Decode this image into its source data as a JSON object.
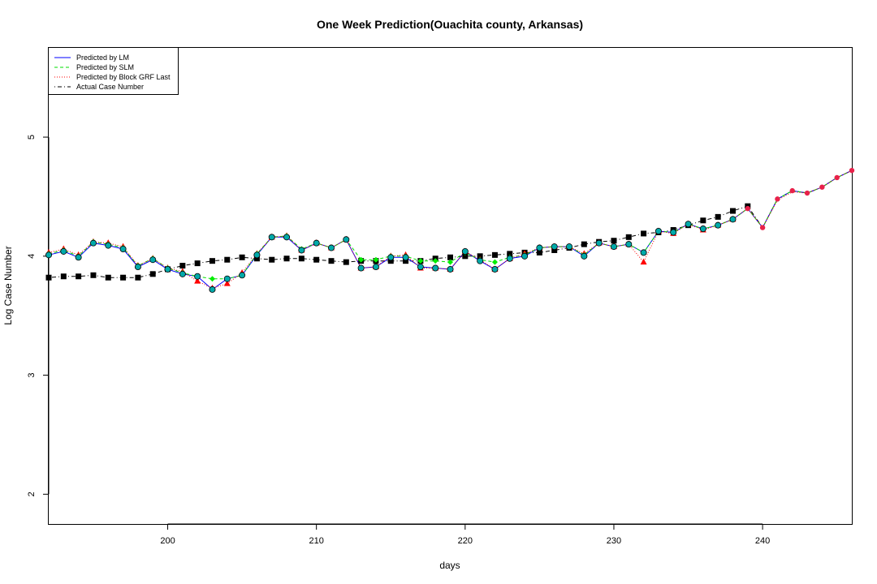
{
  "chart_data": {
    "type": "line",
    "title": "One Week Prediction(Ouachita county, Arkansas)",
    "xlabel": "days",
    "ylabel": "Log Case Number",
    "xlim": [
      192,
      246
    ],
    "ylim": [
      1.75,
      5.75
    ],
    "xticks": [
      200,
      210,
      220,
      230,
      240
    ],
    "yticks": [
      2,
      3,
      4,
      5
    ],
    "legend_position": "top-left",
    "grid": false,
    "legend": [
      {
        "label": "Predicted by LM",
        "color": "#0000ff",
        "dash": "solid"
      },
      {
        "label": "Predicted by SLM",
        "color": "#00dd00",
        "dash": "dashed"
      },
      {
        "label": "Predicted by Block GRF Last",
        "color": "#ff0000",
        "dash": "dotted"
      },
      {
        "label": "Actual Case Number",
        "color": "#000000",
        "dash": "dotdash"
      }
    ],
    "x": [
      192,
      193,
      194,
      195,
      196,
      197,
      198,
      199,
      200,
      201,
      202,
      203,
      204,
      205,
      206,
      207,
      208,
      209,
      210,
      211,
      212,
      213,
      214,
      215,
      216,
      217,
      218,
      219,
      220,
      221,
      222,
      223,
      224,
      225,
      226,
      227,
      228,
      229,
      230,
      231,
      232,
      233,
      234,
      235,
      236,
      237,
      238,
      239,
      240,
      241,
      242,
      243,
      244,
      245,
      246
    ],
    "series": [
      {
        "name": "Predicted by LM",
        "color": "#0000ff",
        "values": [
          4.01,
          4.04,
          3.99,
          4.11,
          4.09,
          4.06,
          3.91,
          3.97,
          3.89,
          3.85,
          3.83,
          3.72,
          3.81,
          3.84,
          4.01,
          4.16,
          4.16,
          4.05,
          4.11,
          4.07,
          4.14,
          3.9,
          3.91,
          3.99,
          3.99,
          3.91,
          3.9,
          3.89,
          4.04,
          3.96,
          3.89,
          3.98,
          4.0,
          4.07,
          4.08,
          4.08,
          4.0,
          4.11,
          4.08,
          4.1,
          4.03,
          4.21,
          4.2,
          4.27,
          4.23,
          4.26,
          4.31,
          4.4,
          4.24,
          4.48,
          4.55,
          4.53,
          4.58,
          4.66,
          4.72
        ]
      },
      {
        "name": "Predicted by SLM",
        "color": "#00dd00",
        "values": [
          4.02,
          4.05,
          4.0,
          4.12,
          4.1,
          4.07,
          3.92,
          3.98,
          3.9,
          3.86,
          3.83,
          3.81,
          3.81,
          3.84,
          4.02,
          4.16,
          4.17,
          4.06,
          4.11,
          4.07,
          4.14,
          3.97,
          3.97,
          4.0,
          4.0,
          3.96,
          3.96,
          3.95,
          4.03,
          3.97,
          3.95,
          3.99,
          4.01,
          4.07,
          4.08,
          4.08,
          4.01,
          4.11,
          4.08,
          4.1,
          4.03,
          4.21,
          4.2,
          4.27,
          4.23,
          4.26,
          4.31,
          4.4,
          4.24,
          4.48,
          4.55,
          4.53,
          4.58,
          4.66,
          4.72
        ]
      },
      {
        "name": "Predicted by Block GRF Last",
        "color": "#ff0000",
        "values": [
          4.03,
          4.06,
          4.01,
          4.12,
          4.11,
          4.08,
          3.92,
          3.98,
          3.9,
          3.87,
          3.79,
          3.73,
          3.77,
          3.86,
          4.02,
          4.16,
          4.17,
          4.05,
          4.11,
          4.07,
          4.14,
          3.9,
          3.91,
          4.0,
          4.01,
          3.9,
          3.9,
          3.89,
          4.04,
          3.97,
          3.89,
          3.98,
          4.02,
          4.07,
          4.08,
          4.08,
          4.02,
          4.11,
          4.08,
          4.1,
          3.95,
          4.21,
          4.19,
          4.27,
          4.22,
          4.26,
          4.31,
          4.4,
          4.24,
          4.47,
          4.54,
          4.53,
          4.58,
          4.66,
          4.72
        ]
      },
      {
        "name": "Actual Case Number",
        "color": "#000000",
        "values": [
          3.82,
          3.83,
          3.83,
          3.84,
          3.82,
          3.82,
          3.82,
          3.85,
          3.89,
          3.92,
          3.94,
          3.96,
          3.97,
          3.99,
          3.98,
          3.97,
          3.98,
          3.98,
          3.97,
          3.96,
          3.95,
          3.96,
          3.96,
          3.96,
          3.96,
          3.96,
          3.98,
          3.99,
          4.0,
          4.0,
          4.01,
          4.02,
          4.03,
          4.03,
          4.05,
          4.07,
          4.1,
          4.12,
          4.13,
          4.16,
          4.19,
          4.2,
          4.22,
          4.26,
          4.3,
          4.33,
          4.38,
          4.42,
          4.24,
          4.48,
          4.55,
          4.53,
          4.58,
          4.66,
          4.72
        ]
      }
    ]
  }
}
